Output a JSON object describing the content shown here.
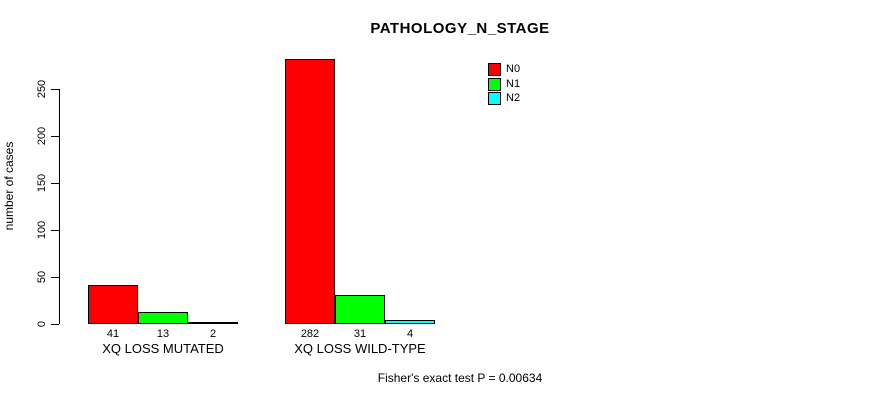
{
  "chart_data": {
    "type": "bar",
    "grouped": true,
    "title": "PATHOLOGY_N_STAGE",
    "xlabel": "",
    "ylabel": "number of cases",
    "categories": [
      "XQ LOSS MUTATED",
      "XQ LOSS WILD-TYPE"
    ],
    "series": [
      {
        "name": "N0",
        "color": "#ff0000",
        "values": [
          41,
          282
        ]
      },
      {
        "name": "N1",
        "color": "#00ff00",
        "values": [
          13,
          31
        ]
      },
      {
        "name": "N2",
        "color": "#00ffff",
        "values": [
          2,
          4
        ]
      }
    ],
    "bar_value_labels": [
      [
        "41",
        "13",
        "2"
      ],
      [
        "282",
        "31",
        "4"
      ]
    ],
    "yticks": [
      0,
      50,
      100,
      150,
      200,
      250
    ],
    "ylim": [
      0,
      282
    ],
    "grid": false,
    "legend_position": "top-right",
    "annotation": "Fisher's exact test P = 0.00634"
  }
}
